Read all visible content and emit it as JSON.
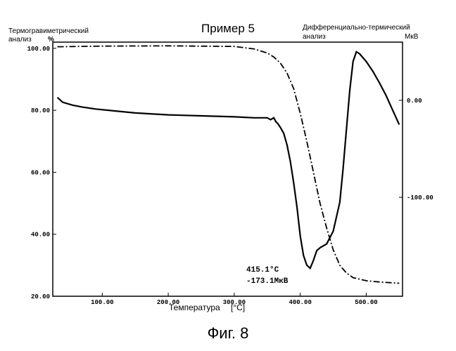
{
  "chart_data": {
    "type": "line",
    "title": "Пример 5",
    "left_axis_label": [
      "Термогравиметрический",
      "анализ"
    ],
    "left_axis_unit": "%",
    "right_axis_label": [
      "Дифференциально-термический",
      "анализ"
    ],
    "right_axis_unit": "МкВ",
    "xlabel": "Температура",
    "xunit": "[°C]",
    "xlim": [
      25,
      555
    ],
    "ylim_left": [
      20,
      102
    ],
    "ylim_right": [
      -202,
      60
    ],
    "x_ticks": [
      "100.00",
      "200.00",
      "300.00",
      "400.00",
      "500.00"
    ],
    "y_left_ticks": [
      "100.00",
      "80.00",
      "60.00",
      "40.00",
      "20.00"
    ],
    "y_right_ticks": [
      "0.00",
      "-100.00"
    ],
    "series": [
      {
        "axis": "left",
        "style": "dash-dot",
        "x": [
          32,
          100,
          200,
          300,
          330,
          350,
          360,
          370,
          380,
          390,
          400,
          410,
          420,
          430,
          440,
          450,
          460,
          470,
          480,
          490,
          500,
          520,
          550
        ],
        "y": [
          100.5,
          100.7,
          100.8,
          100.6,
          99.8,
          98.5,
          97.2,
          95.2,
          92.0,
          87.0,
          79.0,
          70.0,
          60.0,
          50.0,
          42.0,
          35.0,
          30.0,
          27.5,
          26.0,
          25.5,
          25.0,
          24.6,
          24.2
        ]
      },
      {
        "axis": "right",
        "style": "solid",
        "x": [
          32,
          40,
          55,
          70,
          90,
          120,
          150,
          200,
          250,
          300,
          330,
          350,
          355,
          360,
          363,
          366,
          370,
          375,
          380,
          385,
          390,
          395,
          400,
          405,
          410,
          415.1,
          420,
          425,
          430,
          440,
          450,
          460,
          465,
          470,
          475,
          480,
          485,
          490,
          500,
          510,
          520,
          530,
          540,
          550
        ],
        "y": [
          3,
          -2,
          -5,
          -7,
          -9,
          -11,
          -13,
          -15,
          -16,
          -17,
          -18,
          -18,
          -20,
          -18,
          -22,
          -24,
          -28,
          -34,
          -46,
          -63,
          -85,
          -110,
          -140,
          -160,
          -170,
          -173.1,
          -165,
          -155,
          -152,
          -148,
          -135,
          -105,
          -70,
          -30,
          10,
          40,
          50,
          48,
          40,
          30,
          18,
          5,
          -10,
          -25
        ]
      }
    ],
    "annotation": [
      "415.1°C",
      "-173.1МкВ"
    ],
    "caption": "Фиг. 8"
  }
}
